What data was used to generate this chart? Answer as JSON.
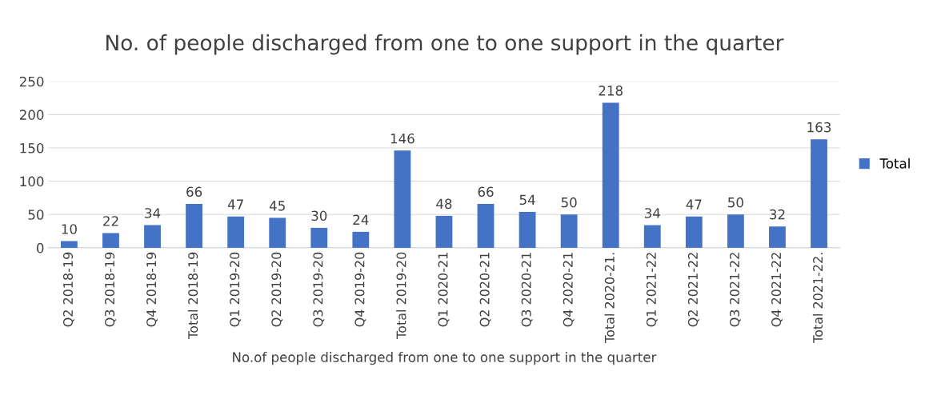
{
  "chart_data": {
    "type": "bar",
    "title": "No. of people discharged from one to one support in the quarter",
    "xlabel": "No.of people discharged from one to one support in the quarter",
    "categories": [
      "Q2 2018-19",
      "Q3 2018-19",
      "Q4 2018-19",
      "Total 2018-19",
      "Q1 2019-20",
      "Q2 2019-20",
      "Q3 2019-20",
      "Q4 2019-20",
      "Total 2019-20",
      "Q1 2020-21",
      "Q2 2020-21",
      "Q3 2020-21",
      "Q4 2020-21",
      "Total 2020-21.",
      "Q1 2021-22",
      "Q2 2021-22",
      "Q3 2021-22",
      "Q4 2021-22",
      "Total 2021-22."
    ],
    "series": [
      {
        "name": "Total",
        "color": "#4472c4",
        "values": [
          10,
          22,
          34,
          66,
          47,
          45,
          30,
          24,
          146,
          48,
          66,
          54,
          50,
          218,
          34,
          47,
          50,
          32,
          163
        ]
      }
    ],
    "ylim": [
      0,
      250
    ],
    "yticks": [
      0,
      50,
      100,
      150,
      200,
      250
    ],
    "grid": "y",
    "legend": "right",
    "data_labels": true
  }
}
